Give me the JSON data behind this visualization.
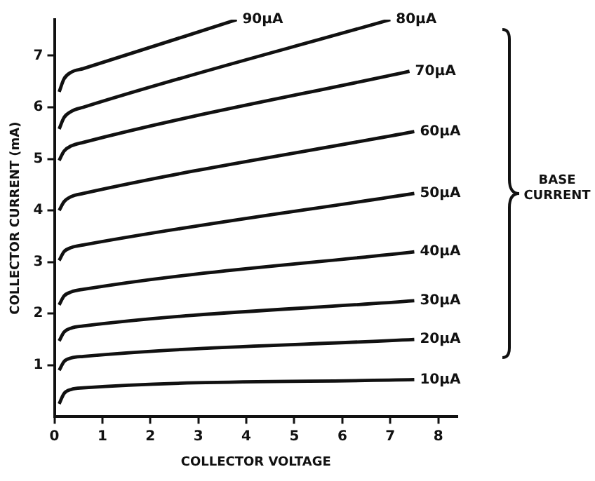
{
  "chart_data": {
    "type": "line",
    "xlabel": "COLLECTOR VOLTAGE",
    "ylabel": "COLLECTOR CURRENT (mA)",
    "annotations": [
      "BASE CURRENT"
    ],
    "xlim": [
      0,
      8.4
    ],
    "ylim": [
      0,
      7.7
    ],
    "xticks": [
      0,
      1,
      2,
      3,
      4,
      5,
      6,
      7,
      8
    ],
    "yticks": [
      1,
      2,
      3,
      4,
      5,
      6,
      7
    ],
    "grid": false,
    "legend": false,
    "marker": "none",
    "line_style": "solid",
    "series": [
      {
        "name": "10μA",
        "color": "#111111",
        "x": [
          0.1,
          0.2,
          0.35,
          0.6,
          7.5
        ],
        "values": [
          0.25,
          0.45,
          0.53,
          0.56,
          0.72
        ]
      },
      {
        "name": "20μA",
        "color": "#111111",
        "x": [
          0.1,
          0.2,
          0.35,
          0.6,
          7.5
        ],
        "values": [
          0.9,
          1.07,
          1.14,
          1.17,
          1.5
        ]
      },
      {
        "name": "30μA",
        "color": "#111111",
        "x": [
          0.1,
          0.2,
          0.35,
          0.6,
          7.5
        ],
        "values": [
          1.47,
          1.64,
          1.72,
          1.76,
          2.25
        ]
      },
      {
        "name": "40μA",
        "color": "#111111",
        "x": [
          0.1,
          0.2,
          0.35,
          0.6,
          7.5
        ],
        "values": [
          2.17,
          2.34,
          2.42,
          2.47,
          3.2
        ]
      },
      {
        "name": "50μA",
        "color": "#111111",
        "x": [
          0.1,
          0.2,
          0.35,
          0.6,
          7.5
        ],
        "values": [
          3.03,
          3.2,
          3.28,
          3.33,
          4.33
        ]
      },
      {
        "name": "60μA",
        "color": "#111111",
        "x": [
          0.1,
          0.2,
          0.35,
          0.6,
          7.5
        ],
        "values": [
          4,
          4.17,
          4.27,
          4.33,
          5.53
        ]
      },
      {
        "name": "70μA",
        "color": "#111111",
        "x": [
          0.1,
          0.2,
          0.35,
          0.6,
          7.4
        ],
        "values": [
          4.97,
          5.15,
          5.25,
          5.32,
          6.7
        ]
      },
      {
        "name": "80μA",
        "color": "#111111",
        "x": [
          0.1,
          0.2,
          0.35,
          0.6,
          7
        ],
        "values": [
          5.58,
          5.8,
          5.92,
          6,
          7.7
        ]
      },
      {
        "name": "90μA",
        "color": "#111111",
        "x": [
          0.1,
          0.2,
          0.35,
          0.6,
          3.8
        ],
        "values": [
          6.3,
          6.55,
          6.68,
          6.75,
          7.7
        ]
      }
    ]
  }
}
